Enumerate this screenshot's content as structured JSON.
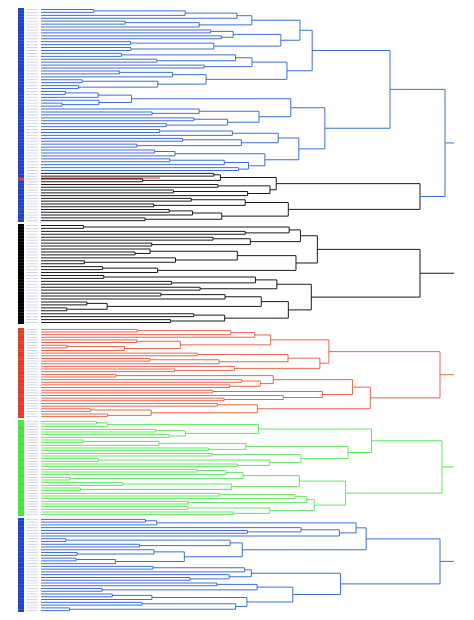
{
  "diagram": {
    "type": "dendrogram",
    "orientation": "horizontal-right",
    "line_width": 1,
    "colors": {
      "blue": "#3e6fd6",
      "black": "#1a1a1a",
      "red": "#e8674a",
      "green": "#5fe85f",
      "label_blue": "#1f43c8",
      "label_red": "#e13b24",
      "label_black": "#000000",
      "label_green": "#46e33a"
    },
    "leaf_count": 212,
    "top_merge": {
      "blocks": [
        {
          "color": "blue",
          "leaves": 56,
          "merges": [
            [
              8,
              8,
              250,
              330,
              380,
              400,
              430
            ],
            [
              6,
              10,
              230,
              290,
              360,
              420
            ],
            [
              8,
              8,
              220,
              300,
              390,
              430
            ],
            [
              6,
              8,
              200,
              310,
              420
            ]
          ]
        },
        {
          "color": "red_accent_blue",
          "leaves": 18,
          "merges": [
            [
              6,
              6,
              180,
              300,
              350,
              430
            ],
            [
              6,
              6,
              150,
              280,
              390
            ]
          ]
        },
        {
          "color": "black",
          "leaves": 34,
          "merges": [
            [
              8,
              10,
              250,
              340,
              380,
              410,
              460
            ],
            [
              8,
              8,
              240,
              310,
              390,
              470
            ]
          ]
        },
        {
          "color": "red",
          "leaves": 34,
          "merges": [
            [
              8,
              10,
              210,
              320,
              350,
              400,
              440
            ],
            [
              8,
              8,
              180,
              240,
              380,
              445
            ]
          ]
        },
        {
          "color": "green",
          "leaves": 36,
          "merges": [
            [
              8,
              10,
              240,
              290,
              370,
              410,
              440
            ],
            [
              10,
              8,
              260,
              350,
              390,
              450
            ]
          ]
        },
        {
          "color": "blue",
          "leaves": 34,
          "merges": [
            [
              8,
              8,
              270,
              340,
              400,
              430,
              445
            ],
            [
              8,
              10,
              250,
              310,
              380,
              440
            ]
          ]
        }
      ]
    }
  }
}
